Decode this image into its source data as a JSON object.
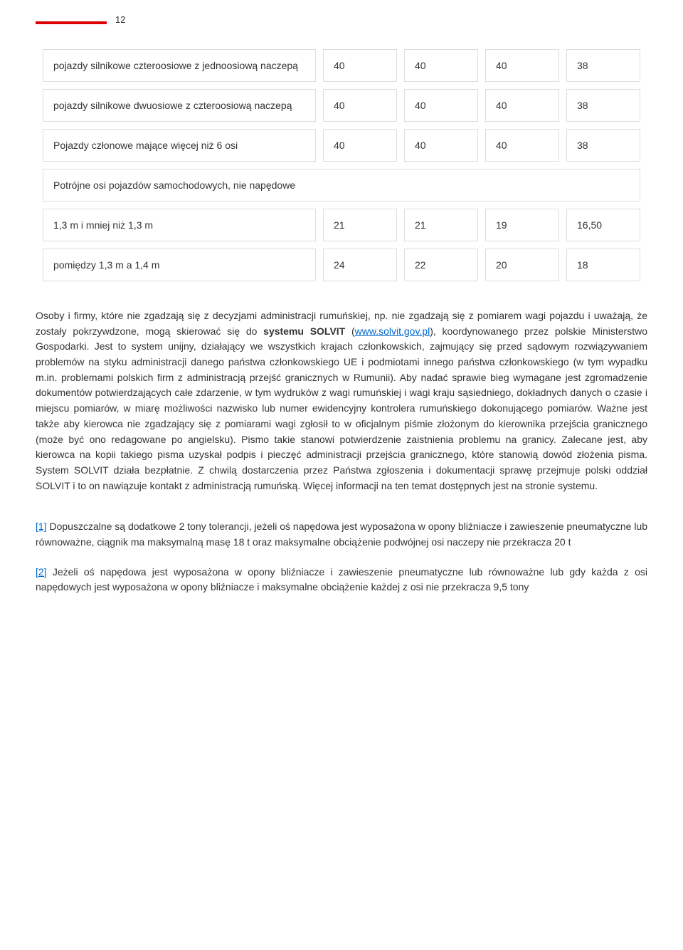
{
  "page_number": "12",
  "table": {
    "rows": [
      {
        "label": "pojazdy silnikowe czteroosiowe z jednoosiową naczepą",
        "v1": "40",
        "v2": "40",
        "v3": "40",
        "v4": "38"
      },
      {
        "label": "pojazdy silnikowe dwuosiowe z czteroosiową naczepą",
        "v1": "40",
        "v2": "40",
        "v3": "40",
        "v4": "38"
      },
      {
        "label": "Pojazdy członowe mające więcej niż 6 osi",
        "v1": "40",
        "v2": "40",
        "v3": "40",
        "v4": "38"
      },
      {
        "label": "Potrójne osi pojazdów samochodowych, nie napędowe",
        "full": true
      },
      {
        "label": "1,3 m i mniej niż 1,3 m",
        "v1": "21",
        "v2": "21",
        "v3": "19",
        "v4": "16,50"
      },
      {
        "label": "pomiędzy 1,3 m a 1,4 m",
        "v1": "24",
        "v2": "22",
        "v3": "20",
        "v4": "18"
      }
    ]
  },
  "body": {
    "p1a": "Osoby i firmy, które nie zgadzają się z decyzjami administracji rumuńskiej, np. nie zgadzają się z pomiarem wagi pojazdu i uważają, że zostały pokrzywdzone, mogą skierować się do ",
    "p1b": "systemu SOLVIT",
    "p1c": " (",
    "link1": "www.solvit.gov.pl",
    "p1d": "), koordynowanego przez polskie Ministerstwo Gospodarki. Jest to system unijny, działający we wszystkich krajach członkowskich, zajmujący się przed sądowym rozwiązywaniem problemów na styku administracji danego państwa członkowskiego UE i podmiotami innego państwa członkowskiego (w tym wypadku m.in. problemami polskich firm z administracją przejść granicznych w Rumunii). Aby nadać sprawie bieg wymagane jest zgromadzenie dokumentów potwierdzających całe zdarzenie, w tym wydruków z wagi rumuńskiej i wagi kraju sąsiedniego, dokładnych danych o czasie i miejscu pomiarów, w miarę możliwości nazwisko lub numer ewidencyjny kontrolera rumuńskiego dokonującego pomiarów. Ważne jest także aby kierowca nie zgadzający się z pomiarami wagi zgłosił to w oficjalnym piśmie złożonym do kierownika przejścia granicznego (może być ono redagowane po angielsku). Pismo takie stanowi potwierdzenie zaistnienia problemu na granicy. Zalecane jest, aby kierowca na kopii takiego pisma uzyskał podpis i pieczęć administracji przejścia granicznego, które stanowią dowód złożenia pisma. System SOLVIT działa bezpłatnie. Z chwilą dostarczenia przez Państwa zgłoszenia i dokumentacji sprawę przejmuje polski oddział SOLVIT i to on nawiązuje kontakt z administracją rumuńską. Więcej informacji na ten temat dostępnych jest na stronie systemu."
  },
  "footnotes": {
    "f1_ref": "[1]",
    "f1_text": " Dopuszczalne są dodatkowe 2 tony tolerancji, jeżeli oś napędowa jest wyposażona w opony bliźniacze i zawieszenie pneumatyczne lub równoważne, ciągnik ma maksymalną masę 18 t oraz maksymalne obciążenie podwójnej osi naczepy nie przekracza 20 t",
    "f2_ref": "[2]",
    "f2_text": " Jeżeli oś napędowa jest wyposażona w opony bliźniacze i zawieszenie pneumatyczne lub równoważne lub gdy każda z osi napędowych jest wyposażona w opony bliźniacze i maksymalne obciążenie każdej z osi nie przekracza 9,5 tony"
  }
}
